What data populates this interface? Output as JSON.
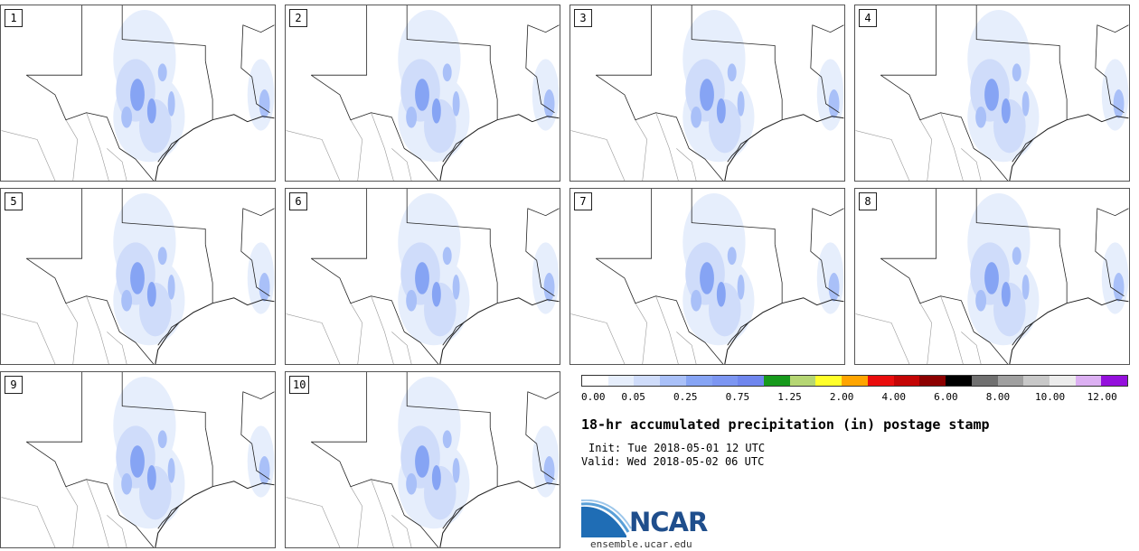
{
  "panels": [
    {
      "label": "1"
    },
    {
      "label": "2"
    },
    {
      "label": "3"
    },
    {
      "label": "4"
    },
    {
      "label": "5"
    },
    {
      "label": "6"
    },
    {
      "label": "7"
    },
    {
      "label": "8"
    },
    {
      "label": "9"
    },
    {
      "label": "10"
    }
  ],
  "colorbar": {
    "colors": [
      "#ffffff",
      "#e6eefc",
      "#cfdcfa",
      "#a9c0f8",
      "#86a4f4",
      "#7c96f2",
      "#6f86ee",
      "#179a1c",
      "#b5d673",
      "#ffff2a",
      "#ffa500",
      "#ea0d0d",
      "#c40505",
      "#8c0000",
      "#000000",
      "#707070",
      "#a0a0a0",
      "#c8c8c8",
      "#ececec",
      "#dcb0f2",
      "#9410dc"
    ],
    "tick_labels": [
      "0.00",
      "0.05",
      "0.25",
      "0.75",
      "1.25",
      "2.00",
      "4.00",
      "6.00",
      "8.00",
      "10.00",
      "12.00"
    ]
  },
  "title": "18-hr accumulated precipitation (in) postage stamp",
  "init": "Init: Tue 2018-05-01 12 UTC",
  "valid": "Valid: Wed 2018-05-02 06 UTC",
  "logo": {
    "text": "NCAR",
    "site": "ensemble.ucar.edu"
  }
}
